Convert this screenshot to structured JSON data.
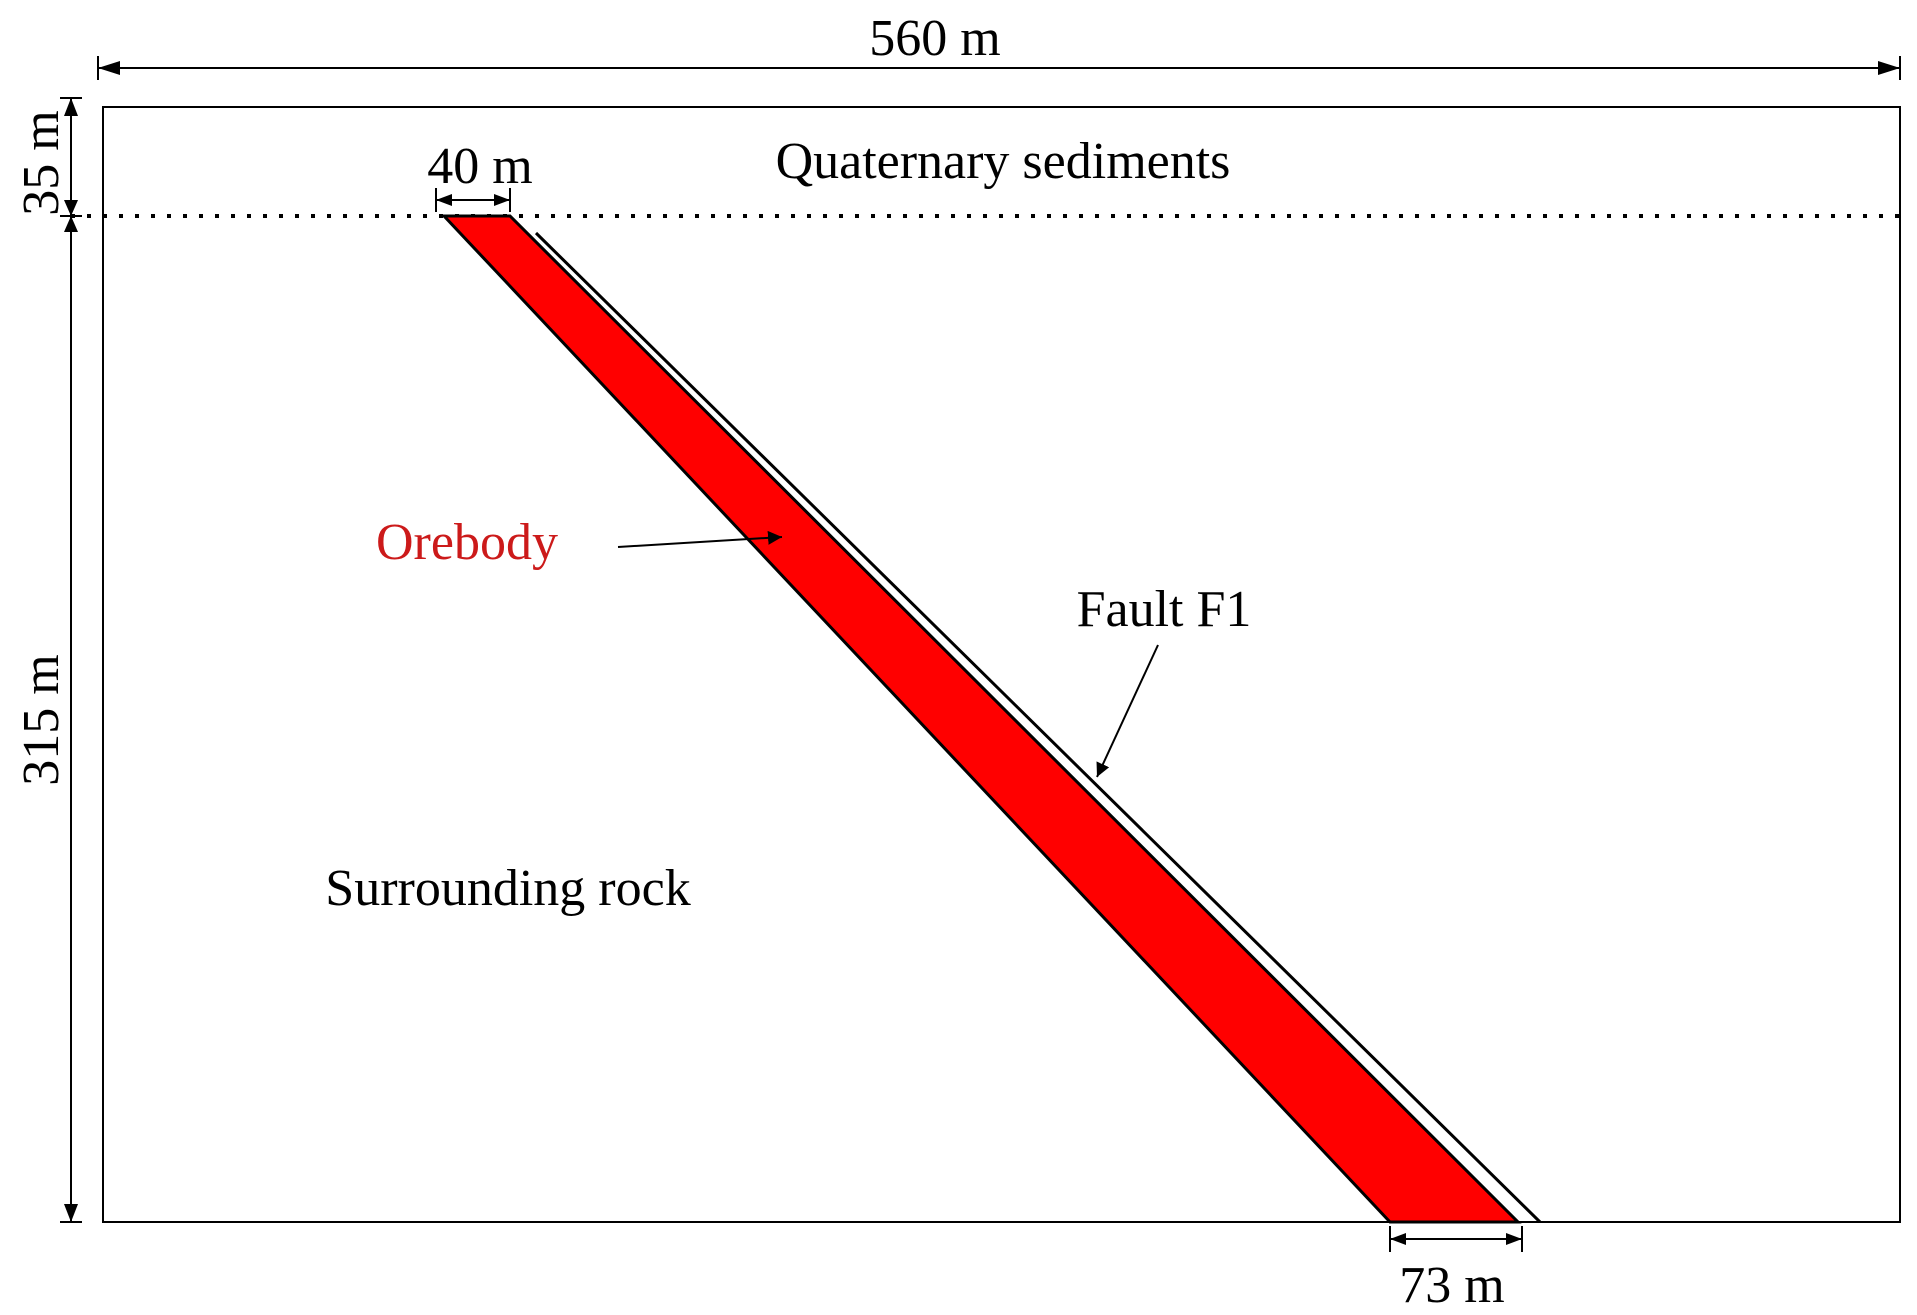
{
  "dimensions": {
    "total_width": "560 m",
    "sediment_depth": "35 m",
    "rock_depth": "315 m",
    "orebody_top_width": "40 m",
    "orebody_bottom_width": "73 m"
  },
  "labels": {
    "sediments": "Quaternary sediments",
    "orebody": "Orebody",
    "fault": "Fault F1",
    "surrounding_rock": "Surrounding rock"
  },
  "colors": {
    "orebody_fill": "#ff0000",
    "orebody_label": "#cc1a1a",
    "line": "#000000",
    "background": "#ffffff"
  }
}
